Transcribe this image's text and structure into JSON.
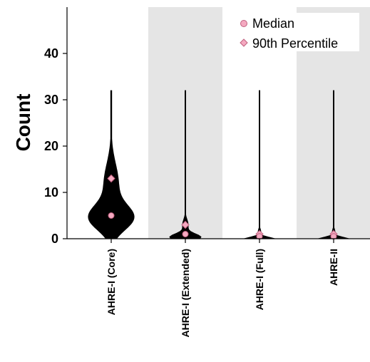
{
  "chart_data": {
    "type": "violin",
    "ylabel": "Count",
    "xlabel": "",
    "ylim": [
      0,
      50
    ],
    "yticks": [
      0,
      10,
      20,
      30,
      40
    ],
    "categories": [
      "AHRE-I (Core)",
      "AHRE-I (Extended)",
      "AHRE-I (Full)",
      "AHRE-II"
    ],
    "shaded_bands": [
      false,
      true,
      false,
      true
    ],
    "max": [
      32,
      32,
      32,
      32
    ],
    "median": [
      5,
      1,
      0.5,
      0.5
    ],
    "p90": [
      13,
      3,
      1,
      1
    ],
    "legend": {
      "position": "top-right",
      "entries": [
        {
          "marker": "circle",
          "label": "Median"
        },
        {
          "marker": "diamond",
          "label": "90th Percentile"
        }
      ]
    },
    "colors": {
      "violin": "#000000",
      "band": "#e5e5e5",
      "marker_fill": "#f4a9c0",
      "marker_stroke": "#c0607f"
    }
  }
}
